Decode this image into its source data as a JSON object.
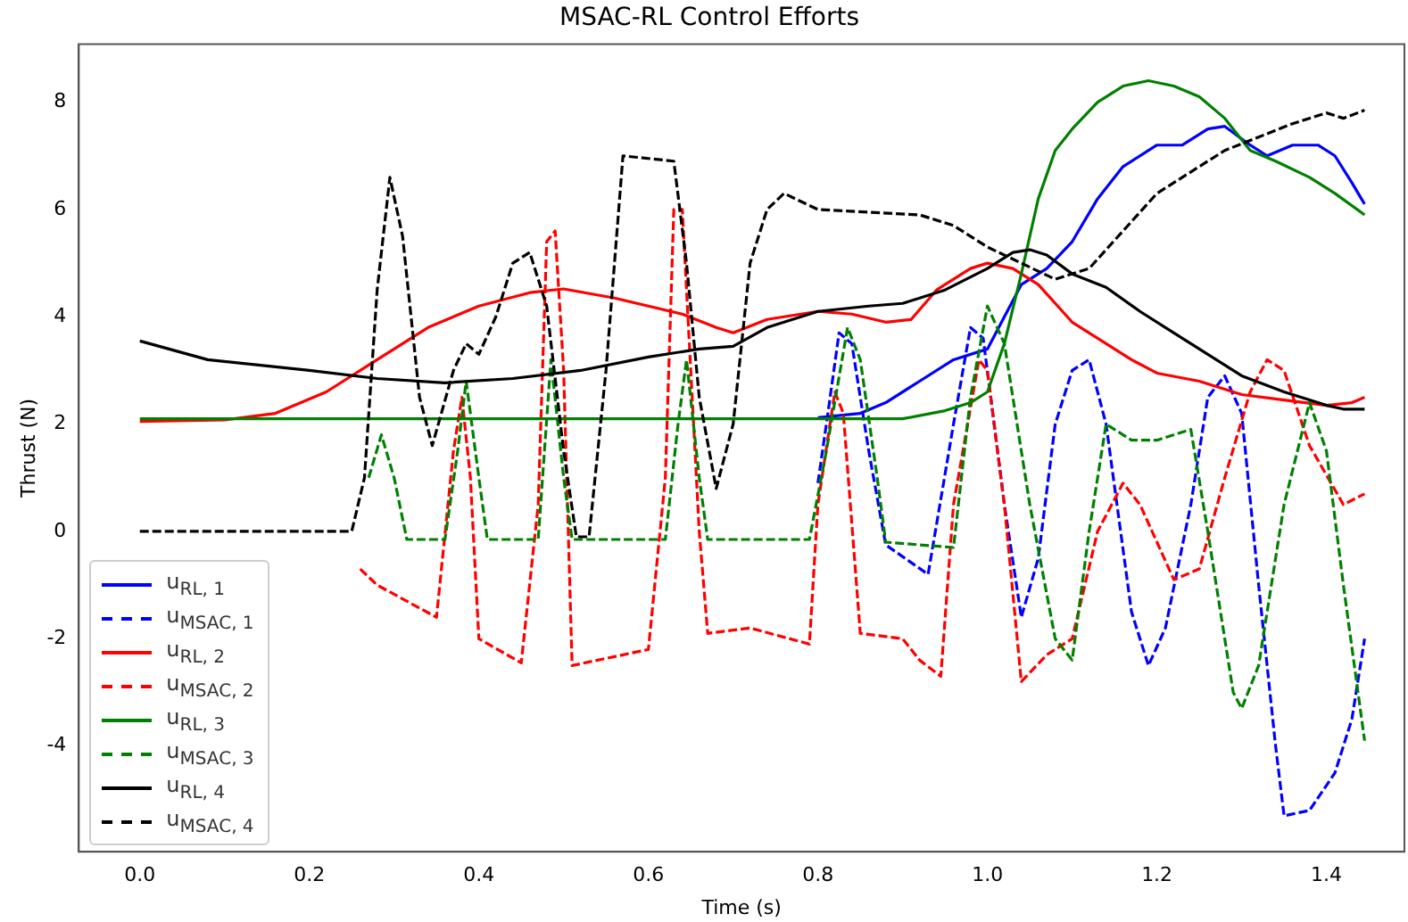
{
  "chart_data": {
    "type": "line",
    "title": "MSAC-RL Control Efforts",
    "xlabel": "Time (s)",
    "ylabel": "Thrust (N)",
    "xlim": [
      -0.072,
      1.492
    ],
    "xticks": [
      {
        "value": 0,
        "label": "0.0"
      },
      0.2,
      0.4,
      0.6,
      0.8,
      {
        "value": 1,
        "label": "1.0"
      },
      1.2,
      1.4
    ],
    "ylim": [
      -5.97,
      9.08
    ],
    "yticks": [
      -4,
      -2,
      0,
      2,
      4,
      6,
      8
    ],
    "grid": false,
    "legend": "bottom left",
    "marker": "none",
    "series": [
      {
        "name": "u$_{RL, 1}$",
        "color": "#0000ff",
        "line_style": "solid",
        "x": [
          0.8,
          0.85,
          0.88,
          0.92,
          0.96,
          1.0,
          1.02,
          1.04,
          1.07,
          1.1,
          1.13,
          1.16,
          1.2,
          1.23,
          1.26,
          1.28,
          1.31,
          1.33,
          1.36,
          1.39,
          1.41,
          1.43,
          1.445
        ],
        "values": [
          2.12,
          2.2,
          2.4,
          2.8,
          3.2,
          3.4,
          4.0,
          4.6,
          4.9,
          5.4,
          6.2,
          6.8,
          7.2,
          7.2,
          7.5,
          7.55,
          7.2,
          7.0,
          7.2,
          7.2,
          7.0,
          6.5,
          6.1
        ]
      },
      {
        "name": "u$_{MSAC, 1}$",
        "color": "#0000ff",
        "line_style": "dashed",
        "x": [
          0.8,
          0.81,
          0.825,
          0.84,
          0.86,
          0.88,
          0.93,
          0.96,
          0.98,
          0.995,
          1.02,
          1.04,
          1.06,
          1.08,
          1.1,
          1.12,
          1.14,
          1.17,
          1.19,
          1.21,
          1.24,
          1.26,
          1.28,
          1.3,
          1.32,
          1.34,
          1.35,
          1.38,
          1.41,
          1.43,
          1.445
        ],
        "values": [
          0.9,
          2.0,
          3.7,
          3.5,
          1.5,
          -0.25,
          -0.8,
          2.0,
          3.8,
          3.6,
          0.5,
          -1.6,
          -0.5,
          2.0,
          3.0,
          3.2,
          2.0,
          -1.5,
          -2.5,
          -1.8,
          0.5,
          2.5,
          2.9,
          2.2,
          -1.0,
          -4.0,
          -5.3,
          -5.2,
          -4.5,
          -3.5,
          -2.0
        ]
      },
      {
        "name": "u$_{RL, 2}$",
        "color": "#ff0000",
        "line_style": "solid",
        "x": [
          0,
          0.1,
          0.16,
          0.22,
          0.28,
          0.34,
          0.4,
          0.46,
          0.5,
          0.56,
          0.64,
          0.68,
          0.7,
          0.74,
          0.8,
          0.84,
          0.88,
          0.91,
          0.94,
          0.98,
          1.0,
          1.03,
          1.06,
          1.1,
          1.13,
          1.17,
          1.2,
          1.25,
          1.3,
          1.35,
          1.4,
          1.43,
          1.445
        ],
        "values": [
          2.05,
          2.08,
          2.2,
          2.6,
          3.2,
          3.8,
          4.2,
          4.45,
          4.52,
          4.35,
          4.05,
          3.8,
          3.7,
          3.95,
          4.1,
          4.05,
          3.9,
          3.95,
          4.5,
          4.9,
          5.0,
          4.9,
          4.6,
          3.9,
          3.6,
          3.2,
          2.95,
          2.8,
          2.55,
          2.45,
          2.35,
          2.4,
          2.5
        ]
      },
      {
        "name": "u$_{MSAC, 2}$",
        "color": "#ff0000",
        "line_style": "dashed",
        "x": [
          0.26,
          0.28,
          0.35,
          0.37,
          0.38,
          0.39,
          0.4,
          0.45,
          0.47,
          0.48,
          0.49,
          0.5,
          0.51,
          0.6,
          0.62,
          0.63,
          0.64,
          0.66,
          0.67,
          0.72,
          0.79,
          0.8,
          0.82,
          0.83,
          0.85,
          0.9,
          0.92,
          0.945,
          0.96,
          0.99,
          1.0,
          1.02,
          1.04,
          1.07,
          1.1,
          1.13,
          1.16,
          1.18,
          1.22,
          1.25,
          1.28,
          1.31,
          1.33,
          1.35,
          1.38,
          1.42,
          1.445
        ],
        "values": [
          -0.7,
          -1.0,
          -1.6,
          1.5,
          2.5,
          1.0,
          -2.0,
          -2.45,
          0.5,
          5.4,
          5.6,
          3.0,
          -2.5,
          -2.2,
          1.0,
          6.0,
          6.0,
          0.0,
          -1.9,
          -1.8,
          -2.1,
          0.5,
          2.6,
          2.2,
          -1.9,
          -2.0,
          -2.4,
          -2.7,
          0.5,
          3.2,
          3.0,
          0.5,
          -2.8,
          -2.3,
          -2.0,
          0.0,
          0.9,
          0.5,
          -0.9,
          -0.7,
          1.0,
          2.6,
          3.2,
          3.0,
          1.6,
          0.5,
          0.7
        ]
      },
      {
        "name": "u$_{RL, 3}$",
        "color": "#008000",
        "line_style": "solid",
        "x": [
          0,
          0.9,
          0.95,
          0.98,
          1.0,
          1.02,
          1.04,
          1.06,
          1.08,
          1.1,
          1.13,
          1.16,
          1.19,
          1.22,
          1.25,
          1.28,
          1.31,
          1.34,
          1.38,
          1.41,
          1.445
        ],
        "values": [
          2.1,
          2.1,
          2.25,
          2.4,
          2.6,
          3.5,
          4.8,
          6.2,
          7.1,
          7.5,
          8.0,
          8.3,
          8.4,
          8.3,
          8.1,
          7.7,
          7.1,
          6.9,
          6.6,
          6.3,
          5.9
        ]
      },
      {
        "name": "u$_{MSAC, 3}$",
        "color": "#008000",
        "line_style": "dashed",
        "x": [
          0.27,
          0.285,
          0.3,
          0.315,
          0.36,
          0.375,
          0.385,
          0.4,
          0.41,
          0.47,
          0.485,
          0.5,
          0.51,
          0.62,
          0.635,
          0.645,
          0.66,
          0.67,
          0.79,
          0.81,
          0.835,
          0.85,
          0.87,
          0.88,
          0.96,
          0.98,
          1.0,
          1.02,
          1.05,
          1.08,
          1.1,
          1.12,
          1.14,
          1.17,
          1.2,
          1.24,
          1.26,
          1.29,
          1.3,
          1.32,
          1.35,
          1.38,
          1.4,
          1.42,
          1.445
        ],
        "values": [
          1.0,
          1.8,
          1.0,
          -0.15,
          -0.15,
          1.5,
          2.8,
          1.0,
          -0.15,
          -0.15,
          3.2,
          1.0,
          -0.15,
          -0.15,
          2.0,
          3.2,
          1.0,
          -0.15,
          -0.15,
          1.5,
          3.8,
          3.2,
          1.0,
          -0.2,
          -0.3,
          2.5,
          4.2,
          3.5,
          0.5,
          -2.0,
          -2.4,
          0.0,
          2.0,
          1.7,
          1.7,
          1.9,
          0.0,
          -3.0,
          -3.3,
          -2.5,
          0.5,
          2.4,
          1.5,
          -1.0,
          -3.9
        ]
      },
      {
        "name": "u$_{RL, 4}$",
        "color": "#000000",
        "line_style": "solid",
        "x": [
          0,
          0.08,
          0.2,
          0.28,
          0.36,
          0.44,
          0.52,
          0.6,
          0.66,
          0.7,
          0.74,
          0.8,
          0.86,
          0.9,
          0.95,
          1.0,
          1.03,
          1.05,
          1.07,
          1.1,
          1.14,
          1.18,
          1.22,
          1.26,
          1.3,
          1.35,
          1.4,
          1.42,
          1.445
        ],
        "values": [
          3.55,
          3.2,
          3.0,
          2.85,
          2.77,
          2.85,
          3.0,
          3.25,
          3.4,
          3.45,
          3.8,
          4.1,
          4.2,
          4.25,
          4.5,
          4.9,
          5.2,
          5.25,
          5.15,
          4.8,
          4.55,
          4.1,
          3.7,
          3.3,
          2.9,
          2.6,
          2.35,
          2.28,
          2.28
        ]
      },
      {
        "name": "u$_{MSAC, 4}$",
        "color": "#000000",
        "line_style": "dashed",
        "x": [
          0,
          0.25,
          0.265,
          0.28,
          0.295,
          0.31,
          0.33,
          0.345,
          0.37,
          0.385,
          0.4,
          0.42,
          0.44,
          0.46,
          0.48,
          0.5,
          0.515,
          0.53,
          0.55,
          0.57,
          0.63,
          0.645,
          0.66,
          0.68,
          0.7,
          0.72,
          0.74,
          0.76,
          0.8,
          0.86,
          0.92,
          0.96,
          1.0,
          1.04,
          1.08,
          1.12,
          1.16,
          1.2,
          1.24,
          1.28,
          1.32,
          1.36,
          1.4,
          1.42,
          1.445
        ],
        "values": [
          0,
          0,
          1.0,
          4.5,
          6.6,
          5.5,
          2.5,
          1.6,
          3.0,
          3.5,
          3.3,
          4.0,
          5.0,
          5.2,
          4.2,
          1.5,
          -0.1,
          -0.1,
          3.0,
          7.0,
          6.9,
          5.0,
          2.5,
          0.8,
          2.0,
          5.0,
          6.0,
          6.3,
          6.0,
          5.95,
          5.9,
          5.7,
          5.3,
          5.0,
          4.7,
          4.9,
          5.6,
          6.3,
          6.7,
          7.1,
          7.35,
          7.6,
          7.8,
          7.7,
          7.85
        ]
      }
    ]
  }
}
